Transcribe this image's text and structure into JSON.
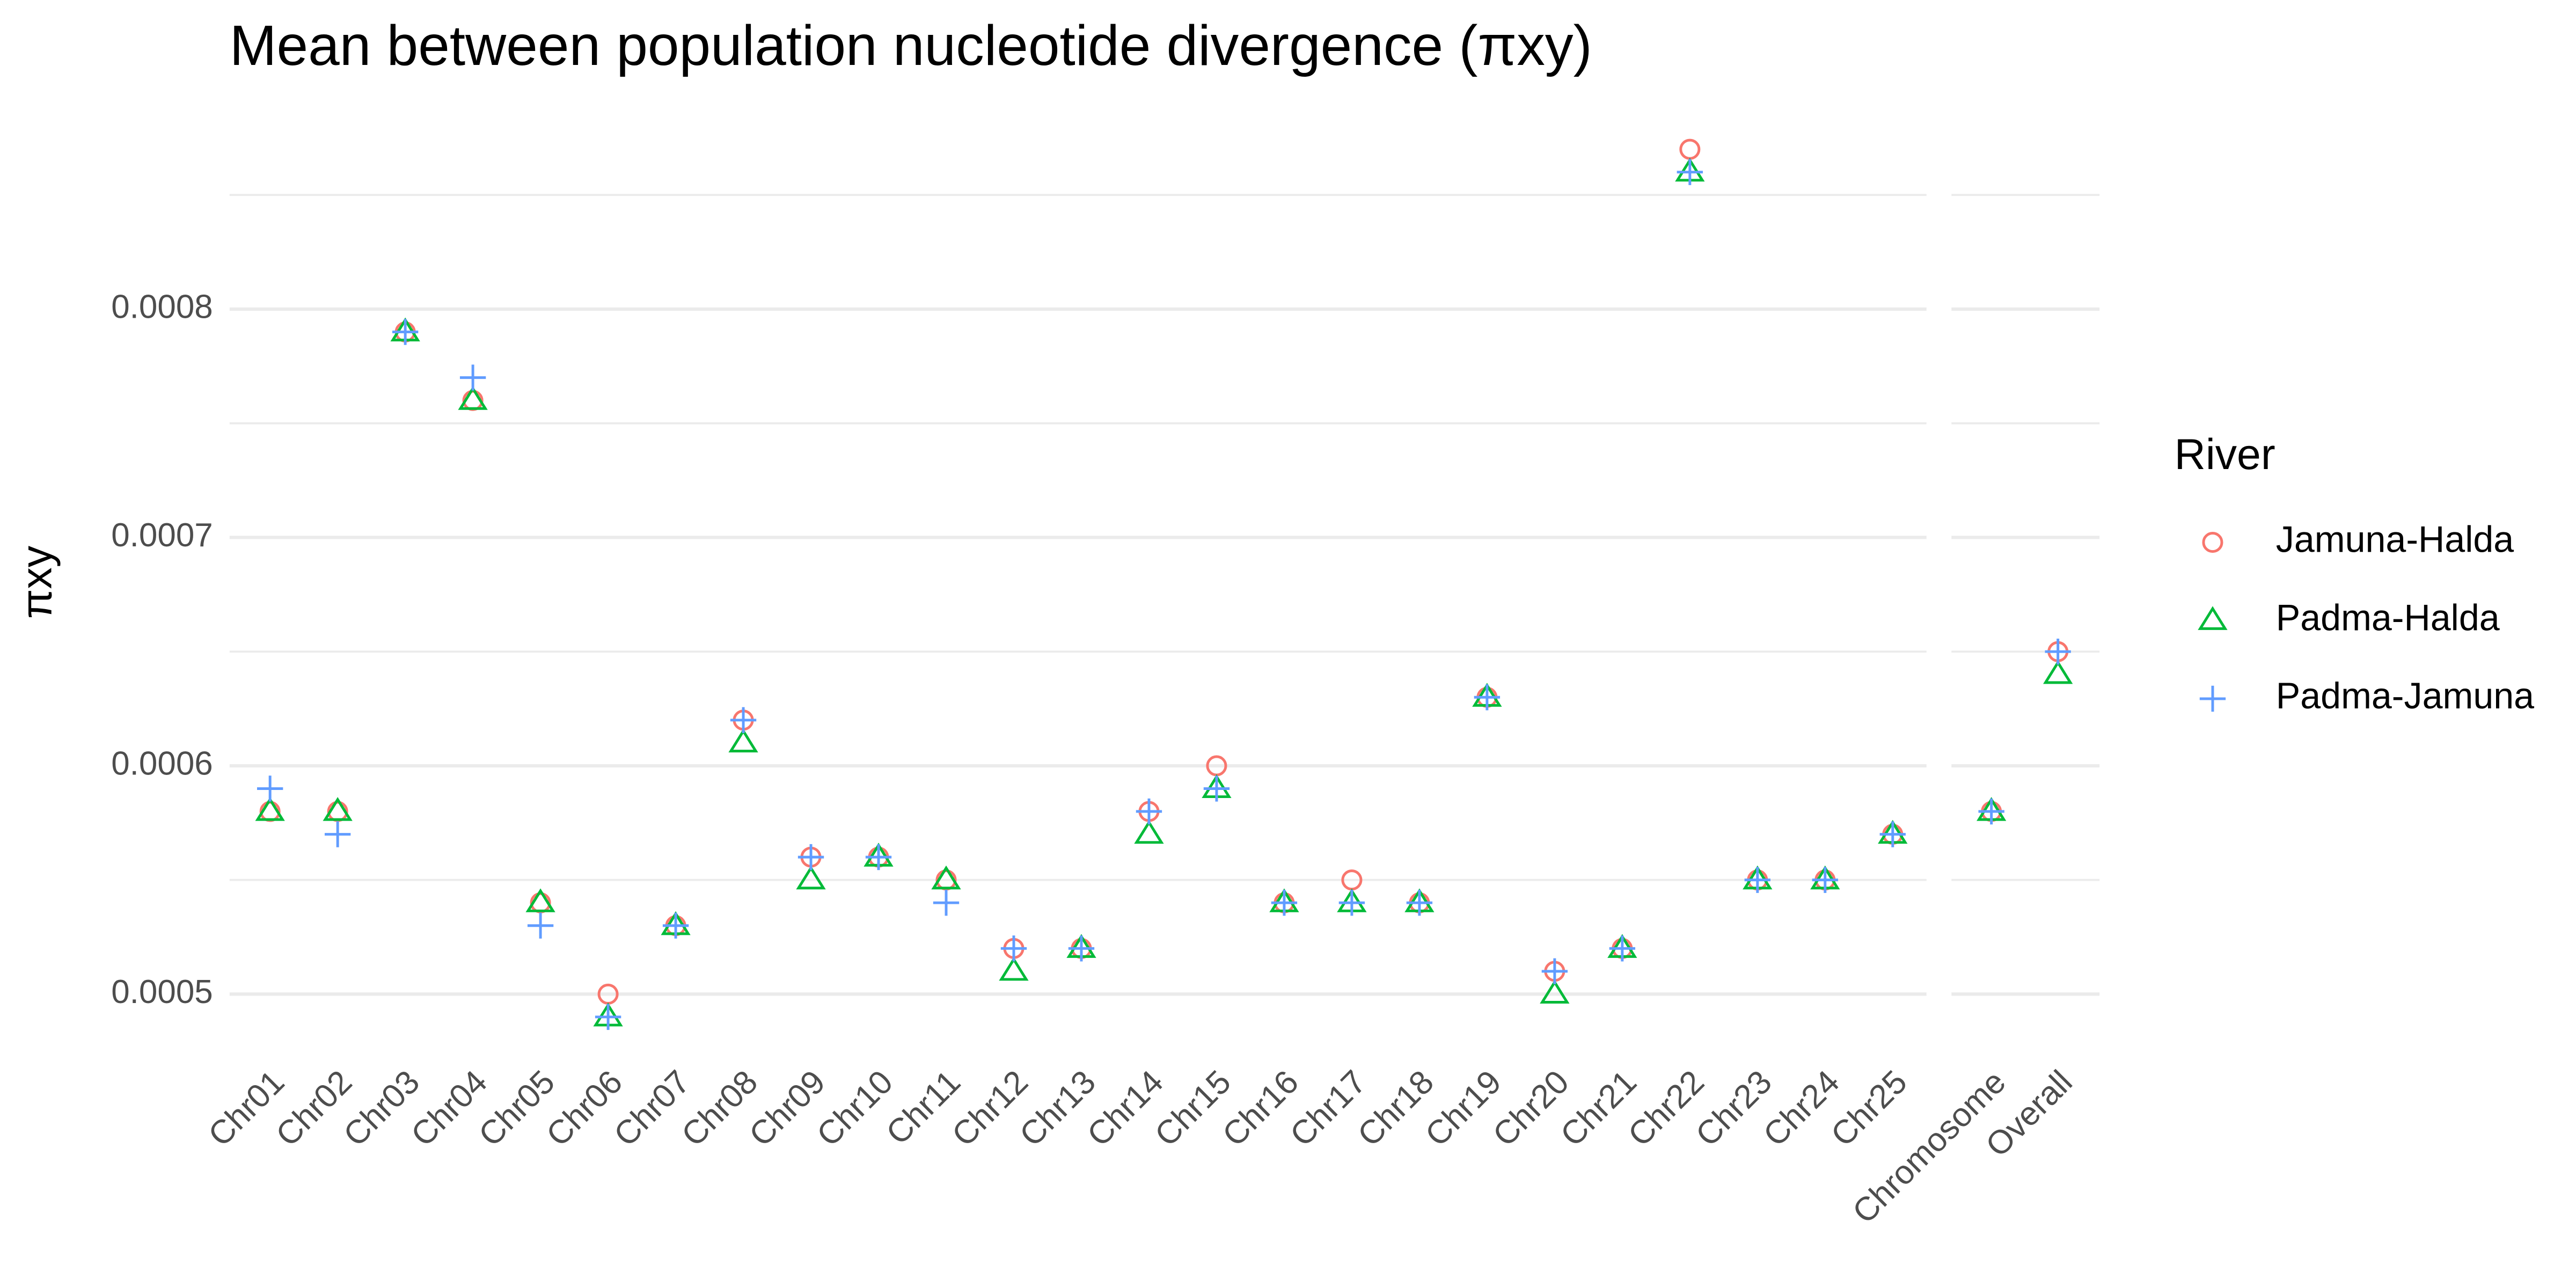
{
  "chart_data": {
    "type": "scatter",
    "title": "Mean between population nucleotide divergence (πxy)",
    "ylabel": "πxy",
    "legend_title": "River",
    "legend": "right",
    "grid": true,
    "ylim": [
      0.00048,
      0.00088
    ],
    "yticks": [
      0.0005,
      0.0006,
      0.0007,
      0.0008
    ],
    "minor_yticks": [
      0.00055,
      0.00065,
      0.00075,
      0.00085
    ],
    "series": [
      {
        "name": "Jamuna-Halda",
        "color": "#F8766D",
        "marker": "circle"
      },
      {
        "name": "Padma-Halda",
        "color": "#00BA38",
        "marker": "triangle"
      },
      {
        "name": "Padma-Jamuna",
        "color": "#619CFF",
        "marker": "plus"
      }
    ],
    "panels": [
      {
        "categories": [
          "Chr01",
          "Chr02",
          "Chr03",
          "Chr04",
          "Chr05",
          "Chr06",
          "Chr07",
          "Chr08",
          "Chr09",
          "Chr10",
          "Chr11",
          "Chr12",
          "Chr13",
          "Chr14",
          "Chr15",
          "Chr16",
          "Chr17",
          "Chr18",
          "Chr19",
          "Chr20",
          "Chr21",
          "Chr22",
          "Chr23",
          "Chr24",
          "Chr25"
        ],
        "series": [
          {
            "values": [
              0.00058,
              0.00058,
              0.00079,
              0.00076,
              0.00054,
              0.0005,
              0.00053,
              0.00062,
              0.00056,
              0.00056,
              0.00055,
              0.00052,
              0.00052,
              0.00058,
              0.0006,
              0.00054,
              0.00055,
              0.00054,
              0.00063,
              0.00051,
              0.00052,
              0.00087,
              0.00055,
              0.00055,
              0.00057
            ]
          },
          {
            "values": [
              0.00058,
              0.00058,
              0.00079,
              0.00076,
              0.00054,
              0.00049,
              0.00053,
              0.00061,
              0.00055,
              0.00056,
              0.00055,
              0.00051,
              0.00052,
              0.00057,
              0.00059,
              0.00054,
              0.00054,
              0.00054,
              0.00063,
              0.0005,
              0.00052,
              0.00086,
              0.00055,
              0.00055,
              0.00057
            ]
          },
          {
            "values": [
              0.00059,
              0.00057,
              0.00079,
              0.00077,
              0.00053,
              0.00049,
              0.00053,
              0.00062,
              0.00056,
              0.00056,
              0.00054,
              0.00052,
              0.00052,
              0.00058,
              0.00059,
              0.00054,
              0.00054,
              0.00054,
              0.00063,
              0.00051,
              0.00052,
              0.00086,
              0.00055,
              0.00055,
              0.00057
            ]
          }
        ]
      },
      {
        "categories": [
          "Chromosome",
          "Overall"
        ],
        "series": [
          {
            "values": [
              0.00058,
              0.00065
            ]
          },
          {
            "values": [
              0.00058,
              0.00064
            ]
          },
          {
            "values": [
              0.00058,
              0.00065
            ]
          }
        ]
      }
    ]
  }
}
